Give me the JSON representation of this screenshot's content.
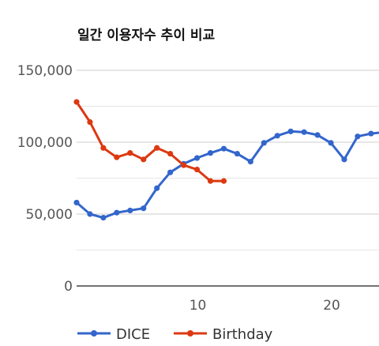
{
  "chart_data": {
    "type": "line",
    "title": "일간 이용자수 추이 비교",
    "xlabel": "",
    "ylabel": "",
    "x_ticks": [
      10,
      20
    ],
    "y_ticks": [
      "0",
      "50,000",
      "100,000",
      "150,000"
    ],
    "ylim": [
      0,
      150000
    ],
    "grid": true,
    "legend_position": "bottom-left",
    "series": [
      {
        "name": "DICE",
        "color": "#3366cc",
        "x": [
          1,
          2,
          3,
          4,
          5,
          6,
          7,
          8,
          9,
          10,
          11,
          12,
          13,
          14,
          15,
          16,
          17,
          18,
          19,
          20,
          21,
          22,
          23,
          24
        ],
        "values": [
          58000,
          50000,
          47500,
          51000,
          52500,
          54000,
          68000,
          79000,
          85000,
          89000,
          92500,
          95500,
          92000,
          86500,
          99500,
          104500,
          107500,
          107000,
          105000,
          99500,
          88000,
          104000,
          106000,
          107000
        ]
      },
      {
        "name": "Birthday",
        "color": "#dc3912",
        "x": [
          1,
          2,
          3,
          4,
          5,
          6,
          7,
          8,
          9,
          10,
          11,
          12
        ],
        "values": [
          128000,
          114000,
          96000,
          89500,
          92500,
          88000,
          96000,
          92000,
          84000,
          81000,
          73000,
          73000
        ]
      }
    ]
  }
}
